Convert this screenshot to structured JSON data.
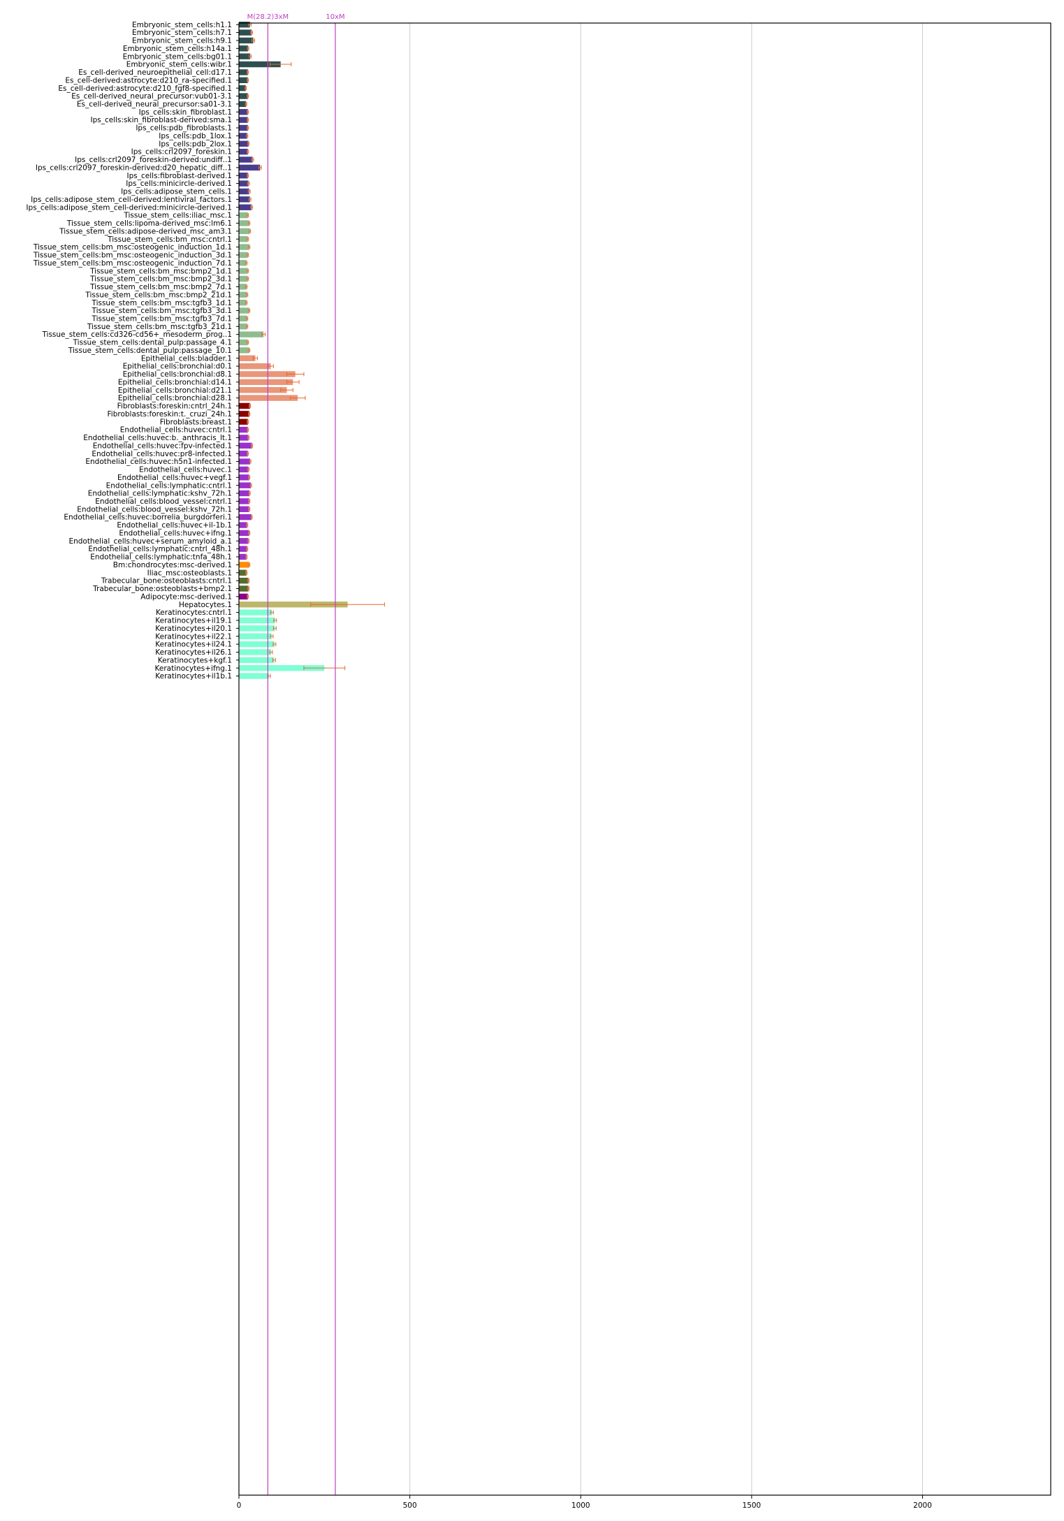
{
  "chart_data": {
    "type": "bar",
    "orientation": "horizontal",
    "xlim": [
      0,
      2375
    ],
    "x_ticks": [
      0,
      500,
      1000,
      1500,
      2000
    ],
    "grid": "vertical",
    "reference_lines": [
      {
        "value": 84.6,
        "label": "M(28.2)3xM",
        "color": "#bf40bf"
      },
      {
        "value": 282,
        "label": "10xM",
        "color": "#bf40bf"
      }
    ],
    "bars": [
      {
        "label": "Embryonic_stem_cells:h1.1",
        "value": 32,
        "err": 4,
        "color": "#2f4f4f"
      },
      {
        "label": "Embryonic_stem_cells:h7.1",
        "value": 37,
        "err": 3,
        "color": "#2f4f4f"
      },
      {
        "label": "Embryonic_stem_cells:h9.1",
        "value": 42,
        "err": 4,
        "color": "#2f4f4f"
      },
      {
        "label": "Embryonic_stem_cells:h14a.1",
        "value": 27,
        "err": 2,
        "color": "#2f4f4f"
      },
      {
        "label": "Embryonic_stem_cells:bg01.1",
        "value": 33,
        "err": 3,
        "color": "#2f4f4f"
      },
      {
        "label": "Embryonic_stem_cells:wibr.1",
        "value": 122,
        "err": 31,
        "color": "#2f4f4f"
      },
      {
        "label": "Es_cell-derived_neuroepithelial_cell:d17.1",
        "value": 26,
        "err": 2,
        "color": "#2f4f4f"
      },
      {
        "label": "Es_cell-derived:astrocyte:d210_ra-specified.1",
        "value": 26,
        "err": 2,
        "color": "#2f4f4f"
      },
      {
        "label": "Es_cell-derived:astrocyte:d210_fgf8-specified.1",
        "value": 20,
        "err": 2,
        "color": "#2f4f4f"
      },
      {
        "label": "Es_cell-derived_neural_precursor:vub01-3.1",
        "value": 26,
        "err": 2,
        "color": "#2f4f4f"
      },
      {
        "label": "Es_cell-derived_neural_precursor:sa01-3.1",
        "value": 21,
        "err": 2,
        "color": "#2f4f4f"
      },
      {
        "label": "Ips_cells:skin_fibroblast.1",
        "value": 26,
        "err": 2,
        "color": "#483d8b"
      },
      {
        "label": "Ips_cells:skin_fibroblast-derived:sma.1",
        "value": 26,
        "err": 2,
        "color": "#483d8b"
      },
      {
        "label": "Ips_cells:pdb_fibroblasts.1",
        "value": 26,
        "err": 2,
        "color": "#483d8b"
      },
      {
        "label": "Ips_cells:pdb_1lox.1",
        "value": 24,
        "err": 2,
        "color": "#483d8b"
      },
      {
        "label": "Ips_cells:pdb_2lox.1",
        "value": 28,
        "err": 2,
        "color": "#483d8b"
      },
      {
        "label": "Ips_cells:crl2097_foreskin.1",
        "value": 26,
        "err": 2,
        "color": "#483d8b"
      },
      {
        "label": "Ips_cells:crl2097_foreskin-derived:undiff..1",
        "value": 40,
        "err": 3,
        "color": "#483d8b"
      },
      {
        "label": "Ips_cells:crl2097_foreskin-derived:d20_hepatic_diff..1",
        "value": 62,
        "err": 4,
        "color": "#483d8b"
      },
      {
        "label": "Ips_cells:fibroblast-derived.1",
        "value": 26,
        "err": 2,
        "color": "#483d8b"
      },
      {
        "label": "Ips_cells:minicircle-derived.1",
        "value": 28,
        "err": 3,
        "color": "#483d8b"
      },
      {
        "label": "Ips_cells:adipose_stem_cells.1",
        "value": 30,
        "err": 3,
        "color": "#483d8b"
      },
      {
        "label": "Ips_cells:adipose_stem_cell-derived:lentiviral_factors.1",
        "value": 32,
        "err": 3,
        "color": "#483d8b"
      },
      {
        "label": "Ips_cells:adipose_stem_cell-derived:minicircle-derived.1",
        "value": 37,
        "err": 3,
        "color": "#483d8b"
      },
      {
        "label": "Tissue_stem_cells:iliac_msc.1",
        "value": 26,
        "err": 2,
        "color": "#8fbc8f"
      },
      {
        "label": "Tissue_stem_cells:lipoma-derived_msc:lm6.1",
        "value": 30,
        "err": 2,
        "color": "#8fbc8f"
      },
      {
        "label": "Tissue_stem_cells:adipose-derived_msc_am3.1",
        "value": 32,
        "err": 2,
        "color": "#8fbc8f"
      },
      {
        "label": "Tissue_stem_cells:bm_msc:cntrl.1",
        "value": 26,
        "err": 2,
        "color": "#8fbc8f"
      },
      {
        "label": "Tissue_stem_cells:bm_msc:osteogenic_induction_1d.1",
        "value": 30,
        "err": 2,
        "color": "#8fbc8f"
      },
      {
        "label": "Tissue_stem_cells:bm_msc:osteogenic_induction_3d.1",
        "value": 26,
        "err": 2,
        "color": "#8fbc8f"
      },
      {
        "label": "Tissue_stem_cells:bm_msc:osteogenic_induction_7d.1",
        "value": 22,
        "err": 2,
        "color": "#8fbc8f"
      },
      {
        "label": "Tissue_stem_cells:bm_msc:bmp2_1d.1",
        "value": 26,
        "err": 2,
        "color": "#8fbc8f"
      },
      {
        "label": "Tissue_stem_cells:bm_msc:bmp2_3d.1",
        "value": 26,
        "err": 2,
        "color": "#8fbc8f"
      },
      {
        "label": "Tissue_stem_cells:bm_msc:bmp2_7d.1",
        "value": 22,
        "err": 2,
        "color": "#8fbc8f"
      },
      {
        "label": "Tissue_stem_cells:bm_msc:bmp2_21d.1",
        "value": 24,
        "err": 2,
        "color": "#8fbc8f"
      },
      {
        "label": "Tissue_stem_cells:bm_msc:tgfb3_1d.1",
        "value": 22,
        "err": 2,
        "color": "#8fbc8f"
      },
      {
        "label": "Tissue_stem_cells:bm_msc:tgfb3_3d.1",
        "value": 30,
        "err": 2,
        "color": "#8fbc8f"
      },
      {
        "label": "Tissue_stem_cells:bm_msc:tgfb3_7d.1",
        "value": 24,
        "err": 2,
        "color": "#8fbc8f"
      },
      {
        "label": "Tissue_stem_cells:bm_msc:tgfb3_21d.1",
        "value": 24,
        "err": 2,
        "color": "#8fbc8f"
      },
      {
        "label": "Tissue_stem_cells:cd326-cd56+_mesoderm_prog..1",
        "value": 72,
        "err": 5,
        "color": "#8fbc8f"
      },
      {
        "label": "Tissue_stem_cells:dental_pulp:passage_4.1",
        "value": 26,
        "err": 2,
        "color": "#8fbc8f"
      },
      {
        "label": "Tissue_stem_cells:dental_pulp:passage_10.1",
        "value": 30,
        "err": 2,
        "color": "#8fbc8f"
      },
      {
        "label": "Epithelial_cells:bladder.1",
        "value": 48,
        "err": 6,
        "color": "#e9967a"
      },
      {
        "label": "Epithelial_cells:bronchial:d0.1",
        "value": 93,
        "err": 8,
        "color": "#e9967a"
      },
      {
        "label": "Epithelial_cells:bronchial:d8.1",
        "value": 165,
        "err": 25,
        "color": "#e9967a"
      },
      {
        "label": "Epithelial_cells:bronchial:d14.1",
        "value": 158,
        "err": 18,
        "color": "#e9967a"
      },
      {
        "label": "Epithelial_cells:bronchial:d21.1",
        "value": 140,
        "err": 18,
        "color": "#e9967a"
      },
      {
        "label": "Epithelial_cells:bronchial:d28.1",
        "value": 172,
        "err": 22,
        "color": "#e9967a"
      },
      {
        "label": "Fibroblasts:foreskin:cntrl_24h.1",
        "value": 32,
        "err": 2,
        "color": "#8b0000"
      },
      {
        "label": "Fibroblasts:foreskin:t._cruzi_24h.1",
        "value": 30,
        "err": 2,
        "color": "#8b0000"
      },
      {
        "label": "Fibroblasts:breast.1",
        "value": 26,
        "err": 2,
        "color": "#8b0000"
      },
      {
        "label": "Endothelial_cells:huvec:cntrl.1",
        "value": 26,
        "err": 2,
        "color": "#9932cc"
      },
      {
        "label": "Endothelial_cells:huvec:b._anthracis_lt.1",
        "value": 28,
        "err": 2,
        "color": "#9932cc"
      },
      {
        "label": "Endothelial_cells:huvec:fpv-infected.1",
        "value": 38,
        "err": 2,
        "color": "#9932cc"
      },
      {
        "label": "Endothelial_cells:huvec:pr8-infected.1",
        "value": 26,
        "err": 2,
        "color": "#9932cc"
      },
      {
        "label": "Endothelial_cells:huvec:h5n1-infected.1",
        "value": 33,
        "err": 2,
        "color": "#9932cc"
      },
      {
        "label": "Endothelial_cells:huvec.1",
        "value": 28,
        "err": 2,
        "color": "#9932cc"
      },
      {
        "label": "Endothelial_cells:huvec+vegf.1",
        "value": 30,
        "err": 2,
        "color": "#9932cc"
      },
      {
        "label": "Endothelial_cells:lymphatic:cntrl.1",
        "value": 35,
        "err": 2,
        "color": "#9932cc"
      },
      {
        "label": "Endothelial_cells:lymphatic:kshv_72h.1",
        "value": 31,
        "err": 2,
        "color": "#9932cc"
      },
      {
        "label": "Endothelial_cells:blood_vessel:cntrl.1",
        "value": 30,
        "err": 2,
        "color": "#9932cc"
      },
      {
        "label": "Endothelial_cells:blood_vessel:kshv_72h.1",
        "value": 30,
        "err": 2,
        "color": "#9932cc"
      },
      {
        "label": "Endothelial_cells:huvec:borrelia_burgdorferi.1",
        "value": 37,
        "err": 2,
        "color": "#9932cc"
      },
      {
        "label": "Endothelial_cells:huvec+il-1b.1",
        "value": 24,
        "err": 2,
        "color": "#9932cc"
      },
      {
        "label": "Endothelial_cells:huvec+ifng.1",
        "value": 30,
        "err": 2,
        "color": "#9932cc"
      },
      {
        "label": "Endothelial_cells:huvec+serum_amyloid_a.1",
        "value": 28,
        "err": 2,
        "color": "#9932cc"
      },
      {
        "label": "Endothelial_cells:lymphatic:cntrl_48h.1",
        "value": 24,
        "err": 2,
        "color": "#9932cc"
      },
      {
        "label": "Endothelial_cells:lymphatic:tnfa_48h.1",
        "value": 22,
        "err": 2,
        "color": "#9932cc"
      },
      {
        "label": "Bm:chondrocytes:msc-derived.1",
        "value": 30,
        "err": 2,
        "color": "#ff8c00"
      },
      {
        "label": "Iliac_msc:osteoblasts.1",
        "value": 22,
        "err": 2,
        "color": "#556b2f"
      },
      {
        "label": "Trabecular_bone:osteoblasts:cntrl.1",
        "value": 28,
        "err": 2,
        "color": "#556b2f"
      },
      {
        "label": "Trabecular_bone:osteoblasts+bmp2.1",
        "value": 28,
        "err": 2,
        "color": "#556b2f"
      },
      {
        "label": "Adipocyte:msc-derived.1",
        "value": 26,
        "err": 2,
        "color": "#8b008b"
      },
      {
        "label": "Hepatocytes.1",
        "value": 318,
        "err": 108,
        "color": "#bdb76b"
      },
      {
        "label": "Keratinocytes:cntrl.1",
        "value": 97,
        "err": 4,
        "color": "#7fffd4"
      },
      {
        "label": "Keratinocytes+il19.1",
        "value": 106,
        "err": 4,
        "color": "#7fffd4"
      },
      {
        "label": "Keratinocytes+il20.1",
        "value": 105,
        "err": 4,
        "color": "#7fffd4"
      },
      {
        "label": "Keratinocytes+il22.1",
        "value": 96,
        "err": 4,
        "color": "#7fffd4"
      },
      {
        "label": "Keratinocytes+il24.1",
        "value": 104,
        "err": 4,
        "color": "#7fffd4"
      },
      {
        "label": "Keratinocytes+il26.1",
        "value": 94,
        "err": 4,
        "color": "#7fffd4"
      },
      {
        "label": "Keratinocytes+kgf.1",
        "value": 103,
        "err": 4,
        "color": "#7fffd4"
      },
      {
        "label": "Keratinocytes+ifng.1",
        "value": 250,
        "err": 60,
        "color": "#7fffd4"
      },
      {
        "label": "Keratinocytes+il1b.1",
        "value": 88,
        "err": 4,
        "color": "#7fffd4"
      }
    ]
  }
}
